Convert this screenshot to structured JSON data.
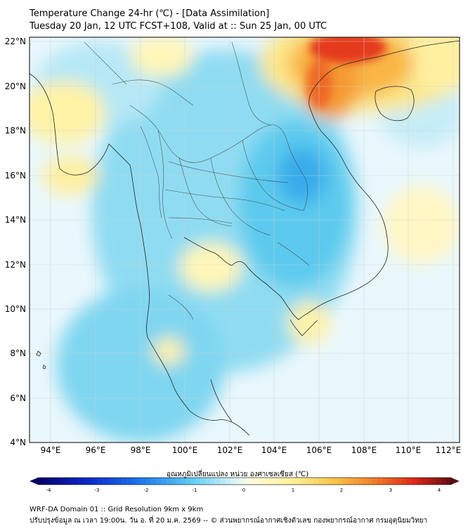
{
  "header": {
    "title_line1": "Temperature Change 24-hr (℃) - [Data Assimilation]",
    "title_line2": "Tuesday 20 Jan, 12 UTC FCST+108, Valid at :: Sun 25 Jan, 00 UTC"
  },
  "map": {
    "lat_labels": [
      "22°N",
      "20°N",
      "18°N",
      "16°N",
      "14°N",
      "12°N",
      "10°N",
      "8°N",
      "6°N",
      "4°N"
    ],
    "lon_labels": [
      "94°E",
      "96°E",
      "98°E",
      "100°E",
      "102°E",
      "104°E",
      "106°E",
      "108°E",
      "110°E",
      "112°E"
    ],
    "colors": {
      "warm": "#e32a15",
      "orange": "#f7a531",
      "yellow": "#fff5a8",
      "cyan": "#69d4f0",
      "blue": "#33a8e6"
    }
  },
  "colorbar": {
    "title": "อุณหภูมิเปลี่ยนแปลง หน่วย องศาเซลเซียส (℃)",
    "ticks": [
      "-4",
      "-3",
      "-2",
      "-1",
      "0",
      "1",
      "2",
      "3",
      "4"
    ]
  },
  "footer": {
    "line1": "WRF-DA Domain 01 :: Grid Resolution 9km x 9km",
    "line2": "ปรับปรุงข้อมูล ณ เวลา 19:00น. วัน อ. ที่ 20 ม.ค. 2569 -- © ส่วนพยากรณ์อากาศเชิงตัวเลข กองพยากรณ์อากาศ กรมอุตุนิยมวิทยา"
  }
}
